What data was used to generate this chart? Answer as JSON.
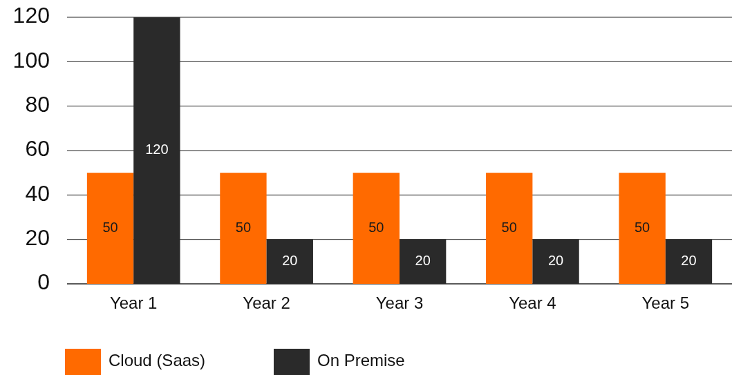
{
  "chart_data": {
    "type": "bar",
    "categories": [
      "Year 1",
      "Year 2",
      "Year 3",
      "Year 4",
      "Year 5"
    ],
    "series": [
      {
        "name": "Cloud (Saas)",
        "color": "#ff6a00",
        "values": [
          50,
          50,
          50,
          50,
          50
        ]
      },
      {
        "name": "On Premise",
        "color": "#2a2a2a",
        "values": [
          120,
          20,
          20,
          20,
          20
        ]
      }
    ],
    "ylim": [
      0,
      120
    ],
    "yticks": [
      0,
      20,
      40,
      60,
      80,
      100,
      120
    ],
    "grid": "y",
    "legend": "bottom",
    "data_labels": true
  }
}
